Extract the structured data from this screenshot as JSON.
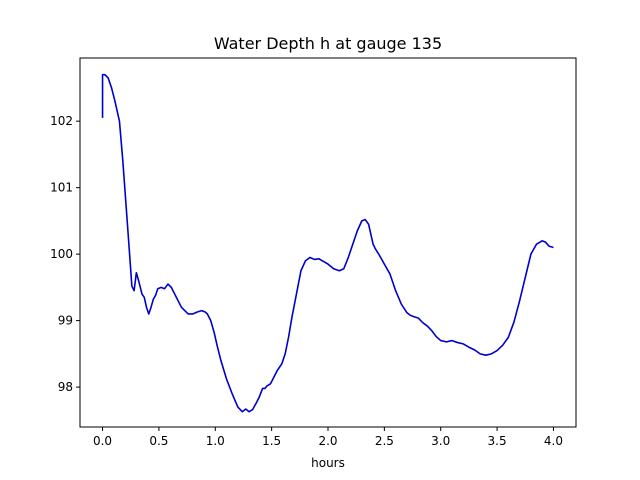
{
  "chart_data": {
    "type": "line",
    "title": "Water Depth h at gauge 135",
    "xlabel": "hours",
    "ylabel": "",
    "xlim": [
      -0.2,
      4.2
    ],
    "ylim": [
      97.4,
      102.95
    ],
    "xticks": [
      0.0,
      0.5,
      1.0,
      1.5,
      2.0,
      2.5,
      3.0,
      3.5,
      4.0
    ],
    "xtick_labels": [
      "0.0",
      "0.5",
      "1.0",
      "1.5",
      "2.0",
      "2.5",
      "3.0",
      "3.5",
      "4.0"
    ],
    "yticks": [
      98,
      99,
      100,
      101,
      102
    ],
    "ytick_labels": [
      "98",
      "99",
      "100",
      "101",
      "102"
    ],
    "grid": false,
    "color": "#0000cc",
    "series": [
      {
        "x": [
          0.0,
          0.0,
          0.02,
          0.05,
          0.08,
          0.11,
          0.15,
          0.18,
          0.21,
          0.24,
          0.26,
          0.28,
          0.3,
          0.32,
          0.35,
          0.37,
          0.39,
          0.41,
          0.43,
          0.45,
          0.47,
          0.49,
          0.52,
          0.55,
          0.58,
          0.61,
          0.64,
          0.67,
          0.7,
          0.73,
          0.76,
          0.8,
          0.84,
          0.88,
          0.91,
          0.93,
          0.96,
          0.99,
          1.02,
          1.05,
          1.1,
          1.15,
          1.2,
          1.24,
          1.27,
          1.3,
          1.33,
          1.36,
          1.39,
          1.42,
          1.44,
          1.46,
          1.49,
          1.52,
          1.55,
          1.59,
          1.62,
          1.65,
          1.68,
          1.72,
          1.76,
          1.8,
          1.84,
          1.88,
          1.92,
          1.95,
          2.0,
          2.05,
          2.1,
          2.14,
          2.18,
          2.22,
          2.26,
          2.3,
          2.33,
          2.36,
          2.38,
          2.4,
          2.42,
          2.45,
          2.5,
          2.55,
          2.6,
          2.65,
          2.7,
          2.73,
          2.76,
          2.8,
          2.84,
          2.88,
          2.92,
          2.96,
          3.0,
          3.05,
          3.1,
          3.15,
          3.2,
          3.25,
          3.3,
          3.35,
          3.4,
          3.45,
          3.5,
          3.55,
          3.6,
          3.65,
          3.7,
          3.75,
          3.8,
          3.85,
          3.9,
          3.93,
          3.96,
          4.0
        ],
        "y": [
          102.05,
          102.7,
          102.7,
          102.65,
          102.5,
          102.3,
          102.0,
          101.4,
          100.7,
          100.0,
          99.52,
          99.45,
          99.72,
          99.6,
          99.4,
          99.35,
          99.2,
          99.1,
          99.2,
          99.32,
          99.38,
          99.48,
          99.5,
          99.48,
          99.55,
          99.5,
          99.4,
          99.3,
          99.2,
          99.15,
          99.1,
          99.1,
          99.13,
          99.15,
          99.13,
          99.1,
          99.0,
          98.82,
          98.6,
          98.4,
          98.12,
          97.9,
          97.7,
          97.63,
          97.67,
          97.63,
          97.66,
          97.75,
          97.85,
          97.98,
          97.98,
          98.02,
          98.05,
          98.15,
          98.25,
          98.35,
          98.5,
          98.75,
          99.05,
          99.4,
          99.75,
          99.9,
          99.95,
          99.92,
          99.93,
          99.9,
          99.85,
          99.78,
          99.75,
          99.78,
          99.95,
          100.15,
          100.35,
          100.5,
          100.52,
          100.45,
          100.3,
          100.15,
          100.08,
          100.0,
          99.85,
          99.7,
          99.45,
          99.25,
          99.12,
          99.08,
          99.06,
          99.04,
          98.97,
          98.92,
          98.85,
          98.76,
          98.7,
          98.68,
          98.7,
          98.67,
          98.65,
          98.6,
          98.56,
          98.5,
          98.48,
          98.5,
          98.55,
          98.63,
          98.75,
          98.98,
          99.3,
          99.65,
          100.0,
          100.15,
          100.2,
          100.18,
          100.12,
          100.1
        ]
      }
    ]
  }
}
